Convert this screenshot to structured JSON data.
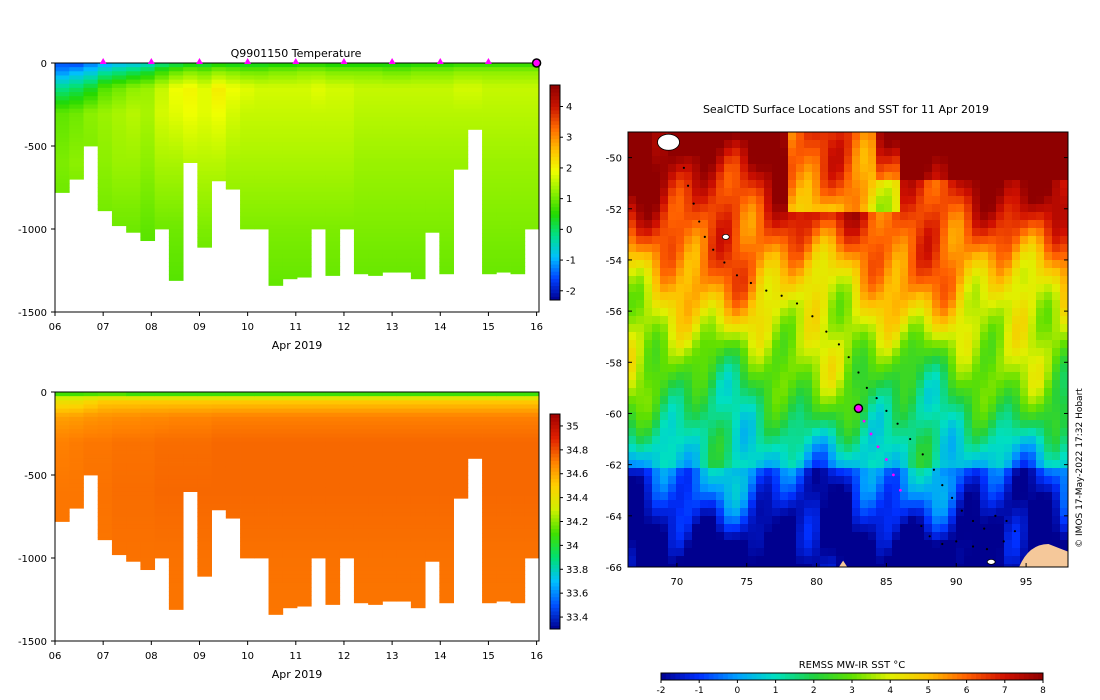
{
  "colors": {
    "temperature_ramp": [
      "#00008f",
      "#0040ff",
      "#00bfff",
      "#00e08a",
      "#22d800",
      "#8cf000",
      "#f0ff00",
      "#ffbf00",
      "#ff6a00",
      "#c81400",
      "#8f0000"
    ],
    "salinity_ramp": [
      "#00008f",
      "#0050ff",
      "#00c0ff",
      "#00e070",
      "#40e000",
      "#d0f000",
      "#ffd000",
      "#ff8000",
      "#e02000",
      "#a00000"
    ],
    "sst_ramp": [
      "#00008f",
      "#0030ff",
      "#00a0ff",
      "#00e0c0",
      "#20d040",
      "#60e000",
      "#e0f000",
      "#ffc000",
      "#ff6000",
      "#d01000",
      "#8f0000"
    ],
    "marker": "#ff00ff",
    "land": "#f5c89a"
  },
  "chart_data": [
    {
      "type": "heatmap",
      "title": "Q9901150  Temperature",
      "xlabel": "Apr 2019",
      "ylabel": "",
      "x_tick_labels": [
        "06",
        "07",
        "08",
        "09",
        "10",
        "11",
        "12",
        "13",
        "14",
        "15",
        "16"
      ],
      "x_range_days": [
        6,
        16.05
      ],
      "ylim": [
        -1500,
        0
      ],
      "y_ticks": [
        0,
        -500,
        -1000,
        -1500
      ],
      "colorbar": {
        "min": -2.3,
        "max": 4.7,
        "ticks": [
          4,
          3,
          2,
          1,
          0,
          -1,
          -2
        ]
      },
      "profile_markers_days": [
        7,
        8,
        9,
        10,
        11,
        12,
        13,
        14,
        15
      ],
      "current_marker_day": 16,
      "profiles": [
        {
          "day": 6.05,
          "max_depth": 780
        },
        {
          "day": 6.35,
          "max_depth": 700
        },
        {
          "day": 6.65,
          "max_depth": 500
        },
        {
          "day": 6.95,
          "max_depth": 890
        },
        {
          "day": 7.25,
          "max_depth": 980
        },
        {
          "day": 7.55,
          "max_depth": 1020
        },
        {
          "day": 7.85,
          "max_depth": 1070
        },
        {
          "day": 8.15,
          "max_depth": 1000
        },
        {
          "day": 8.45,
          "max_depth": 1310
        },
        {
          "day": 8.75,
          "max_depth": 600
        },
        {
          "day": 9.05,
          "max_depth": 1110
        },
        {
          "day": 9.35,
          "max_depth": 710
        },
        {
          "day": 9.65,
          "max_depth": 760
        },
        {
          "day": 9.95,
          "max_depth": 1000
        },
        {
          "day": 10.25,
          "max_depth": 1000
        },
        {
          "day": 10.55,
          "max_depth": 1340
        },
        {
          "day": 10.85,
          "max_depth": 1300
        },
        {
          "day": 11.15,
          "max_depth": 1290
        },
        {
          "day": 11.45,
          "max_depth": 1000
        },
        {
          "day": 11.75,
          "max_depth": 1280
        },
        {
          "day": 12.05,
          "max_depth": 1000
        },
        {
          "day": 12.35,
          "max_depth": 1270
        },
        {
          "day": 12.65,
          "max_depth": 1280
        },
        {
          "day": 12.95,
          "max_depth": 1260
        },
        {
          "day": 13.25,
          "max_depth": 1260
        },
        {
          "day": 13.55,
          "max_depth": 1300
        },
        {
          "day": 13.85,
          "max_depth": 1020
        },
        {
          "day": 14.15,
          "max_depth": 1270
        },
        {
          "day": 14.45,
          "max_depth": 640
        },
        {
          "day": 14.75,
          "max_depth": 400
        },
        {
          "day": 15.05,
          "max_depth": 1270
        },
        {
          "day": 15.35,
          "max_depth": 1260
        },
        {
          "day": 15.65,
          "max_depth": 1270
        },
        {
          "day": 15.95,
          "max_depth": 1000
        }
      ],
      "profile_values": [
        [
          -1.5,
          -1.2,
          -0.2,
          0.9,
          1.1,
          0.9,
          0.6
        ],
        [
          -1.6,
          -1.0,
          0.0,
          1.0,
          1.2,
          0.9,
          0.6
        ],
        [
          -1.3,
          -0.8,
          0.3,
          1.2,
          1.1,
          0.9,
          0.6
        ],
        [
          -1.1,
          -0.4,
          0.8,
          1.3,
          1.2,
          1.0,
          0.7
        ],
        [
          -0.9,
          -0.2,
          1.0,
          1.4,
          1.3,
          1.0,
          0.8
        ],
        [
          -0.8,
          0.0,
          1.2,
          1.5,
          1.3,
          1.0,
          0.8
        ],
        [
          -0.6,
          0.2,
          1.3,
          1.4,
          1.2,
          0.9,
          0.7
        ],
        [
          -0.2,
          0.6,
          1.6,
          1.7,
          1.4,
          1.0,
          0.8
        ],
        [
          0.0,
          0.9,
          1.9,
          1.8,
          1.4,
          1.0,
          0.8
        ],
        [
          0.2,
          1.1,
          2.0,
          1.9,
          1.5,
          1.0,
          0.8
        ],
        [
          0.1,
          1.0,
          1.8,
          1.8,
          1.5,
          1.1,
          0.8
        ],
        [
          0.3,
          1.2,
          2.1,
          1.9,
          1.5,
          1.1,
          0.9
        ],
        [
          0.2,
          1.1,
          1.9,
          1.7,
          1.4,
          1.1,
          0.8
        ],
        [
          0.2,
          1.0,
          1.8,
          1.6,
          1.4,
          1.1,
          0.9
        ],
        [
          0.2,
          1.0,
          1.7,
          1.6,
          1.4,
          1.1,
          0.9
        ],
        [
          0.3,
          1.1,
          1.7,
          1.6,
          1.4,
          1.1,
          0.9
        ],
        [
          0.3,
          1.1,
          1.7,
          1.6,
          1.4,
          1.1,
          0.9
        ],
        [
          0.4,
          1.2,
          1.7,
          1.6,
          1.4,
          1.1,
          0.9
        ],
        [
          0.4,
          1.2,
          1.8,
          1.6,
          1.4,
          1.1,
          0.9
        ],
        [
          0.3,
          1.1,
          1.7,
          1.6,
          1.4,
          1.1,
          0.9
        ],
        [
          0.3,
          1.1,
          1.7,
          1.6,
          1.4,
          1.1,
          0.9
        ],
        [
          0.3,
          1.1,
          1.6,
          1.5,
          1.3,
          1.1,
          0.9
        ],
        [
          0.3,
          1.1,
          1.6,
          1.5,
          1.3,
          1.1,
          0.9
        ],
        [
          0.3,
          1.0,
          1.6,
          1.5,
          1.3,
          1.1,
          0.9
        ],
        [
          0.3,
          1.0,
          1.6,
          1.5,
          1.3,
          1.1,
          0.9
        ],
        [
          0.4,
          1.1,
          1.6,
          1.5,
          1.3,
          1.1,
          0.9
        ],
        [
          0.4,
          1.1,
          1.6,
          1.5,
          1.3,
          1.1,
          0.9
        ],
        [
          0.4,
          1.1,
          1.6,
          1.5,
          1.3,
          1.1,
          0.9
        ],
        [
          0.5,
          1.2,
          1.7,
          1.5,
          1.3,
          1.1,
          0.9
        ],
        [
          0.5,
          1.2,
          1.7,
          1.5,
          1.3,
          1.1,
          0.9
        ],
        [
          0.5,
          1.2,
          1.6,
          1.5,
          1.3,
          1.1,
          0.9
        ],
        [
          0.5,
          1.2,
          1.6,
          1.5,
          1.3,
          1.1,
          0.9
        ],
        [
          0.5,
          1.2,
          1.6,
          1.5,
          1.3,
          1.1,
          0.9
        ],
        [
          0.5,
          1.2,
          1.6,
          1.5,
          1.3,
          1.1,
          0.9
        ]
      ],
      "profile_value_depths": [
        0,
        50,
        150,
        300,
        600,
        1000,
        1400
      ]
    },
    {
      "type": "heatmap",
      "title": "",
      "xlabel": "Apr 2019",
      "ylabel": "",
      "x_tick_labels": [
        "06",
        "07",
        "08",
        "09",
        "10",
        "11",
        "12",
        "13",
        "14",
        "15",
        "16"
      ],
      "x_range_days": [
        6,
        16.05
      ],
      "ylim": [
        -1500,
        0
      ],
      "y_ticks": [
        0,
        -500,
        -1000,
        -1500
      ],
      "colorbar": {
        "min": 33.3,
        "max": 35.1,
        "ticks": [
          35,
          34.8,
          34.6,
          34.4,
          34.2,
          34,
          33.8,
          33.6,
          33.4
        ]
      },
      "profile_values": [
        [
          34.0,
          34.4,
          34.62,
          34.7,
          34.72,
          34.72,
          34.71
        ],
        [
          34.0,
          34.4,
          34.63,
          34.71,
          34.72,
          34.72,
          34.71
        ],
        [
          34.0,
          34.45,
          34.65,
          34.72,
          34.73,
          34.72,
          34.71
        ],
        [
          34.0,
          34.5,
          34.66,
          34.72,
          34.73,
          34.72,
          34.71
        ],
        [
          34.0,
          34.5,
          34.67,
          34.73,
          34.74,
          34.73,
          34.72
        ],
        [
          33.95,
          34.5,
          34.67,
          34.73,
          34.74,
          34.73,
          34.72
        ],
        [
          33.95,
          34.5,
          34.68,
          34.73,
          34.74,
          34.73,
          34.72
        ],
        [
          33.95,
          34.5,
          34.68,
          34.74,
          34.75,
          34.73,
          34.72
        ],
        [
          33.95,
          34.5,
          34.69,
          34.74,
          34.75,
          34.73,
          34.72
        ],
        [
          33.95,
          34.5,
          34.69,
          34.74,
          34.75,
          34.73,
          34.72
        ],
        [
          33.95,
          34.5,
          34.69,
          34.74,
          34.75,
          34.73,
          34.72
        ],
        [
          33.95,
          34.5,
          34.7,
          34.75,
          34.75,
          34.73,
          34.72
        ],
        [
          33.95,
          34.5,
          34.7,
          34.75,
          34.75,
          34.73,
          34.72
        ],
        [
          33.95,
          34.5,
          34.7,
          34.75,
          34.75,
          34.73,
          34.72
        ],
        [
          33.95,
          34.5,
          34.7,
          34.75,
          34.75,
          34.73,
          34.72
        ],
        [
          33.95,
          34.5,
          34.7,
          34.75,
          34.75,
          34.73,
          34.72
        ],
        [
          33.95,
          34.5,
          34.7,
          34.75,
          34.75,
          34.73,
          34.72
        ],
        [
          33.95,
          34.5,
          34.7,
          34.75,
          34.75,
          34.73,
          34.72
        ],
        [
          33.95,
          34.5,
          34.7,
          34.75,
          34.75,
          34.73,
          34.72
        ],
        [
          33.95,
          34.5,
          34.7,
          34.75,
          34.75,
          34.73,
          34.72
        ],
        [
          33.95,
          34.5,
          34.7,
          34.75,
          34.75,
          34.73,
          34.72
        ],
        [
          33.95,
          34.5,
          34.7,
          34.75,
          34.75,
          34.73,
          34.72
        ],
        [
          33.95,
          34.5,
          34.7,
          34.75,
          34.75,
          34.73,
          34.72
        ],
        [
          33.95,
          34.5,
          34.7,
          34.75,
          34.75,
          34.73,
          34.72
        ],
        [
          33.95,
          34.5,
          34.7,
          34.75,
          34.75,
          34.73,
          34.72
        ],
        [
          33.95,
          34.5,
          34.7,
          34.75,
          34.75,
          34.73,
          34.72
        ],
        [
          33.95,
          34.5,
          34.7,
          34.75,
          34.75,
          34.73,
          34.72
        ],
        [
          33.95,
          34.5,
          34.7,
          34.75,
          34.75,
          34.73,
          34.72
        ],
        [
          33.95,
          34.5,
          34.7,
          34.75,
          34.75,
          34.73,
          34.72
        ],
        [
          33.95,
          34.5,
          34.7,
          34.75,
          34.75,
          34.73,
          34.72
        ],
        [
          33.95,
          34.5,
          34.7,
          34.75,
          34.75,
          34.73,
          34.72
        ],
        [
          33.95,
          34.5,
          34.7,
          34.75,
          34.75,
          34.73,
          34.72
        ],
        [
          33.95,
          34.5,
          34.7,
          34.75,
          34.75,
          34.73,
          34.72
        ],
        [
          33.95,
          34.5,
          34.7,
          34.75,
          34.75,
          34.73,
          34.72
        ]
      ],
      "profile_value_depths": [
        0,
        50,
        150,
        300,
        600,
        1000,
        1400
      ]
    },
    {
      "type": "heatmap",
      "title": "SealCTD Surface Locations and SST for 11 Apr 2019",
      "xlabel": "",
      "ylabel": "",
      "x_ticks": [
        70,
        75,
        80,
        85,
        90,
        95
      ],
      "xlim": [
        66.5,
        98
      ],
      "y_ticks": [
        -50,
        -52,
        -54,
        -56,
        -58,
        -60,
        -62,
        -64,
        -66
      ],
      "ylim": [
        -66,
        -49
      ],
      "colorbar": {
        "label": "REMSS MW-IR SST °C",
        "min": -2,
        "max": 8,
        "ticks": [
          -2,
          -1,
          0,
          1,
          2,
          3,
          4,
          5,
          6,
          7,
          8
        ]
      },
      "track_points": [
        [
          70.5,
          -50.4
        ],
        [
          70.8,
          -51.1
        ],
        [
          71.2,
          -51.8
        ],
        [
          71.6,
          -52.5
        ],
        [
          72.0,
          -53.1
        ],
        [
          72.6,
          -53.6
        ],
        [
          73.4,
          -54.1
        ],
        [
          74.3,
          -54.6
        ],
        [
          75.3,
          -54.9
        ],
        [
          76.4,
          -55.2
        ],
        [
          77.5,
          -55.4
        ],
        [
          78.6,
          -55.7
        ],
        [
          79.7,
          -56.2
        ],
        [
          80.7,
          -56.8
        ],
        [
          81.6,
          -57.3
        ],
        [
          82.3,
          -57.8
        ],
        [
          83.0,
          -58.4
        ],
        [
          83.6,
          -59.0
        ],
        [
          84.3,
          -59.4
        ],
        [
          85.0,
          -59.9
        ],
        [
          85.8,
          -60.4
        ],
        [
          86.7,
          -61.0
        ],
        [
          87.6,
          -61.6
        ],
        [
          88.4,
          -62.2
        ],
        [
          89.0,
          -62.8
        ],
        [
          89.7,
          -63.3
        ],
        [
          90.4,
          -63.8
        ],
        [
          91.2,
          -64.2
        ],
        [
          92.0,
          -64.5
        ],
        [
          92.8,
          -64.0
        ],
        [
          93.6,
          -64.2
        ],
        [
          94.2,
          -64.6
        ],
        [
          93.4,
          -65.0
        ],
        [
          92.2,
          -65.3
        ],
        [
          91.2,
          -65.2
        ],
        [
          90.0,
          -65.0
        ],
        [
          89.0,
          -65.1
        ],
        [
          88.1,
          -64.8
        ],
        [
          87.5,
          -64.4
        ]
      ],
      "recent_points": [
        [
          83.0,
          -59.8
        ],
        [
          83.4,
          -60.3
        ],
        [
          83.9,
          -60.8
        ],
        [
          84.4,
          -61.3
        ],
        [
          85.0,
          -61.8
        ],
        [
          85.5,
          -62.4
        ],
        [
          86.0,
          -63.0
        ]
      ],
      "current_location": [
        83.0,
        -59.8
      ],
      "copyright": "© IMOS 17-May-2022 17:32 Hobart"
    }
  ]
}
